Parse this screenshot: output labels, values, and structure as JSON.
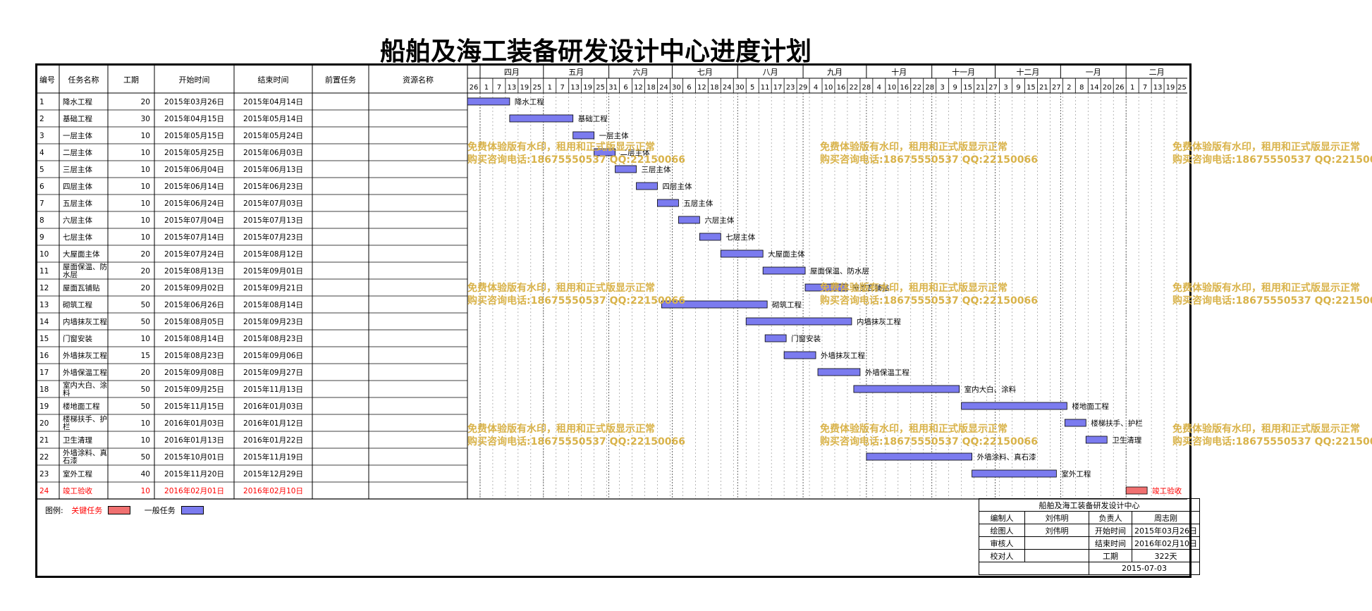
{
  "title": "船舶及海工装备研发设计中心进度计划",
  "headers": {
    "id": "编号",
    "name": "任务名称",
    "dur": "工期",
    "start": "开始时间",
    "end": "结束时间",
    "pred": "前置任务",
    "res": "资源名称"
  },
  "colors": {
    "critical": "#f07070",
    "normal": "#7b7bef",
    "critical_text": "#ff0000",
    "watermark": "#d9b34a"
  },
  "chart_data": {
    "type": "gantt",
    "x_start": "2015-03-26",
    "x_end": "2016-02-29",
    "months": [
      {
        "label": "四月",
        "start": "2015-04-01"
      },
      {
        "label": "五月",
        "start": "2015-05-01"
      },
      {
        "label": "六月",
        "start": "2015-06-01"
      },
      {
        "label": "七月",
        "start": "2015-07-01"
      },
      {
        "label": "八月",
        "start": "2015-08-01"
      },
      {
        "label": "九月",
        "start": "2015-09-01"
      },
      {
        "label": "十月",
        "start": "2015-10-01"
      },
      {
        "label": "十一月",
        "start": "2015-11-01"
      },
      {
        "label": "十二月",
        "start": "2015-12-01"
      },
      {
        "label": "一月",
        "start": "2016-01-01"
      },
      {
        "label": "二月",
        "start": "2016-02-01"
      }
    ],
    "day_ticks": [
      {
        "label": "26",
        "date": "2015-03-26"
      },
      {
        "label": "1",
        "date": "2015-04-01"
      },
      {
        "label": "7",
        "date": "2015-04-07"
      },
      {
        "label": "13",
        "date": "2015-04-13"
      },
      {
        "label": "19",
        "date": "2015-04-19"
      },
      {
        "label": "25",
        "date": "2015-04-25"
      },
      {
        "label": "1",
        "date": "2015-05-01"
      },
      {
        "label": "7",
        "date": "2015-05-07"
      },
      {
        "label": "13",
        "date": "2015-05-13"
      },
      {
        "label": "19",
        "date": "2015-05-19"
      },
      {
        "label": "25",
        "date": "2015-05-25"
      },
      {
        "label": "31",
        "date": "2015-05-31"
      },
      {
        "label": "6",
        "date": "2015-06-06"
      },
      {
        "label": "12",
        "date": "2015-06-12"
      },
      {
        "label": "18",
        "date": "2015-06-18"
      },
      {
        "label": "24",
        "date": "2015-06-24"
      },
      {
        "label": "30",
        "date": "2015-06-30"
      },
      {
        "label": "6",
        "date": "2015-07-06"
      },
      {
        "label": "12",
        "date": "2015-07-12"
      },
      {
        "label": "18",
        "date": "2015-07-18"
      },
      {
        "label": "24",
        "date": "2015-07-24"
      },
      {
        "label": "30",
        "date": "2015-07-30"
      },
      {
        "label": "5",
        "date": "2015-08-05"
      },
      {
        "label": "11",
        "date": "2015-08-11"
      },
      {
        "label": "17",
        "date": "2015-08-17"
      },
      {
        "label": "23",
        "date": "2015-08-23"
      },
      {
        "label": "29",
        "date": "2015-08-29"
      },
      {
        "label": "4",
        "date": "2015-09-04"
      },
      {
        "label": "10",
        "date": "2015-09-10"
      },
      {
        "label": "16",
        "date": "2015-09-16"
      },
      {
        "label": "22",
        "date": "2015-09-22"
      },
      {
        "label": "28",
        "date": "2015-09-28"
      },
      {
        "label": "4",
        "date": "2015-10-04"
      },
      {
        "label": "10",
        "date": "2015-10-10"
      },
      {
        "label": "16",
        "date": "2015-10-16"
      },
      {
        "label": "22",
        "date": "2015-10-22"
      },
      {
        "label": "28",
        "date": "2015-10-28"
      },
      {
        "label": "3",
        "date": "2015-11-03"
      },
      {
        "label": "9",
        "date": "2015-11-09"
      },
      {
        "label": "15",
        "date": "2015-11-15"
      },
      {
        "label": "21",
        "date": "2015-11-21"
      },
      {
        "label": "27",
        "date": "2015-11-27"
      },
      {
        "label": "3",
        "date": "2015-12-03"
      },
      {
        "label": "9",
        "date": "2015-12-09"
      },
      {
        "label": "15",
        "date": "2015-12-15"
      },
      {
        "label": "21",
        "date": "2015-12-21"
      },
      {
        "label": "27",
        "date": "2015-12-27"
      },
      {
        "label": "2",
        "date": "2016-01-02"
      },
      {
        "label": "8",
        "date": "2016-01-08"
      },
      {
        "label": "14",
        "date": "2016-01-14"
      },
      {
        "label": "20",
        "date": "2016-01-20"
      },
      {
        "label": "26",
        "date": "2016-01-26"
      },
      {
        "label": "1",
        "date": "2016-02-01"
      },
      {
        "label": "7",
        "date": "2016-02-07"
      },
      {
        "label": "13",
        "date": "2016-02-13"
      },
      {
        "label": "19",
        "date": "2016-02-19"
      },
      {
        "label": "25",
        "date": "2016-02-25"
      }
    ],
    "tasks": [
      {
        "id": "1",
        "name": "降水工程",
        "dur": "20",
        "start": "2015-03-26",
        "end": "2015-04-14",
        "start_label": "2015年03月26日",
        "end_label": "2015年04月14日",
        "critical": false
      },
      {
        "id": "2",
        "name": "基础工程",
        "dur": "30",
        "start": "2015-04-15",
        "end": "2015-05-14",
        "start_label": "2015年04月15日",
        "end_label": "2015年05月14日",
        "critical": false
      },
      {
        "id": "3",
        "name": "一层主体",
        "dur": "10",
        "start": "2015-05-15",
        "end": "2015-05-24",
        "start_label": "2015年05月15日",
        "end_label": "2015年05月24日",
        "critical": false
      },
      {
        "id": "4",
        "name": "二层主体",
        "dur": "10",
        "start": "2015-05-25",
        "end": "2015-06-03",
        "start_label": "2015年05月25日",
        "end_label": "2015年06月03日",
        "critical": false
      },
      {
        "id": "5",
        "name": "三层主体",
        "dur": "10",
        "start": "2015-06-04",
        "end": "2015-06-13",
        "start_label": "2015年06月04日",
        "end_label": "2015年06月13日",
        "critical": false
      },
      {
        "id": "6",
        "name": "四层主体",
        "dur": "10",
        "start": "2015-06-14",
        "end": "2015-06-23",
        "start_label": "2015年06月14日",
        "end_label": "2015年06月23日",
        "critical": false
      },
      {
        "id": "7",
        "name": "五层主体",
        "dur": "10",
        "start": "2015-06-24",
        "end": "2015-07-03",
        "start_label": "2015年06月24日",
        "end_label": "2015年07月03日",
        "critical": false
      },
      {
        "id": "8",
        "name": "六层主体",
        "dur": "10",
        "start": "2015-07-04",
        "end": "2015-07-13",
        "start_label": "2015年07月04日",
        "end_label": "2015年07月13日",
        "critical": false
      },
      {
        "id": "9",
        "name": "七层主体",
        "dur": "10",
        "start": "2015-07-14",
        "end": "2015-07-23",
        "start_label": "2015年07月14日",
        "end_label": "2015年07月23日",
        "critical": false
      },
      {
        "id": "10",
        "name": "大屋面主体",
        "dur": "20",
        "start": "2015-07-24",
        "end": "2015-08-12",
        "start_label": "2015年07月24日",
        "end_label": "2015年08月12日",
        "critical": false
      },
      {
        "id": "11",
        "name": "屋面保温、防水层",
        "dur": "20",
        "start": "2015-08-13",
        "end": "2015-09-01",
        "start_label": "2015年08月13日",
        "end_label": "2015年09月01日",
        "critical": false
      },
      {
        "id": "12",
        "name": "屋面瓦铺贴",
        "dur": "20",
        "start": "2015-09-02",
        "end": "2015-09-21",
        "start_label": "2015年09月02日",
        "end_label": "2015年09月21日",
        "critical": false
      },
      {
        "id": "13",
        "name": "砌筑工程",
        "dur": "50",
        "start": "2015-06-26",
        "end": "2015-08-14",
        "start_label": "2015年06月26日",
        "end_label": "2015年08月14日",
        "critical": false
      },
      {
        "id": "14",
        "name": "内墙抹灰工程",
        "dur": "50",
        "start": "2015-08-05",
        "end": "2015-09-23",
        "start_label": "2015年08月05日",
        "end_label": "2015年09月23日",
        "critical": false
      },
      {
        "id": "15",
        "name": "门窗安装",
        "dur": "10",
        "start": "2015-08-14",
        "end": "2015-08-23",
        "start_label": "2015年08月14日",
        "end_label": "2015年08月23日",
        "critical": false
      },
      {
        "id": "16",
        "name": "外墙抹灰工程",
        "dur": "15",
        "start": "2015-08-23",
        "end": "2015-09-06",
        "start_label": "2015年08月23日",
        "end_label": "2015年09月06日",
        "critical": false
      },
      {
        "id": "17",
        "name": "外墙保温工程",
        "dur": "20",
        "start": "2015-09-08",
        "end": "2015-09-27",
        "start_label": "2015年09月08日",
        "end_label": "2015年09月27日",
        "critical": false
      },
      {
        "id": "18",
        "name": "室内大白、涂料",
        "dur": "50",
        "start": "2015-09-25",
        "end": "2015-11-13",
        "start_label": "2015年09月25日",
        "end_label": "2015年11月13日",
        "critical": false
      },
      {
        "id": "19",
        "name": "楼地面工程",
        "dur": "50",
        "start": "2015-11-15",
        "end": "2016-01-03",
        "start_label": "2015年11月15日",
        "end_label": "2016年01月03日",
        "critical": false
      },
      {
        "id": "20",
        "name": "楼梯扶手、护栏",
        "dur": "10",
        "start": "2016-01-03",
        "end": "2016-01-12",
        "start_label": "2016年01月03日",
        "end_label": "2016年01月12日",
        "critical": false
      },
      {
        "id": "21",
        "name": "卫生清理",
        "dur": "10",
        "start": "2016-01-13",
        "end": "2016-01-22",
        "start_label": "2016年01月13日",
        "end_label": "2016年01月22日",
        "critical": false
      },
      {
        "id": "22",
        "name": "外墙涂料、真石漆",
        "dur": "50",
        "start": "2015-10-01",
        "end": "2015-11-19",
        "start_label": "2015年10月01日",
        "end_label": "2015年11月19日",
        "critical": false
      },
      {
        "id": "23",
        "name": "室外工程",
        "dur": "40",
        "start": "2015-11-20",
        "end": "2015-12-29",
        "start_label": "2015年11月20日",
        "end_label": "2015年12月29日",
        "critical": false
      },
      {
        "id": "24",
        "name": "竣工验收",
        "dur": "10",
        "start": "2016-02-01",
        "end": "2016-02-10",
        "start_label": "2016年02月01日",
        "end_label": "2016年02月10日",
        "critical": true
      }
    ]
  },
  "watermark": {
    "line1": "免费体验版有水印，租用和正式版显示正常",
    "line2": "购买咨询电话:18675550537 QQ:22150066"
  },
  "legend": {
    "label": "图例:",
    "critical": "关键任务",
    "normal": "一般任务"
  },
  "info_table": {
    "title": "船舶及海工装备研发设计中心",
    "rows": [
      [
        "编制人",
        "刘伟明",
        "负责人",
        "周志刚"
      ],
      [
        "绘图人",
        "刘伟明",
        "开始时间",
        "2015年03月26日"
      ],
      [
        "审核人",
        "",
        "结束时间",
        "2016年02月10日"
      ],
      [
        "校对人",
        "",
        "工期",
        "322天"
      ]
    ],
    "date": "2015-07-03"
  }
}
